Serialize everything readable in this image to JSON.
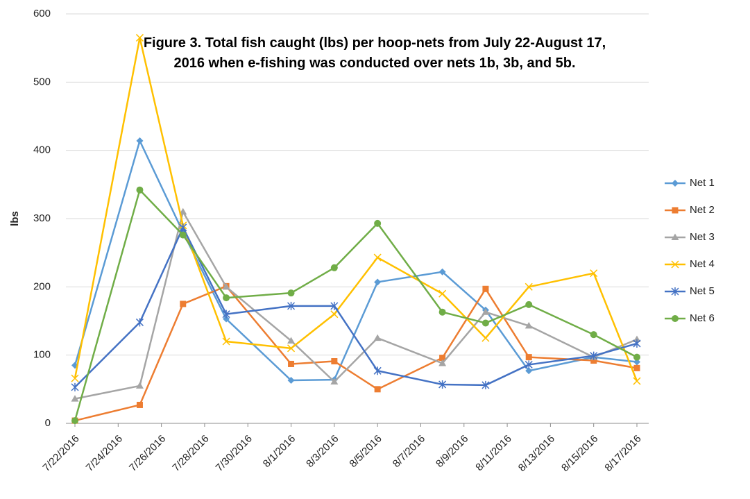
{
  "chart_data": {
    "type": "line",
    "title": [
      "Figure 3. Total fish caught (lbs) per hoop-nets from July 22-August 17,",
      "2016 when e-fishing was conducted over nets 1b, 3b, and 5b."
    ],
    "y_label": "lbs",
    "x": [
      "7/22/2016",
      "7/25/2016",
      "7/27/2016",
      "7/29/2016",
      "8/1/2016",
      "8/3/2016",
      "8/5/2016",
      "8/8/2016",
      "8/10/2016",
      "8/12/2016",
      "8/15/2016",
      "8/17/2016"
    ],
    "xlim": [
      "7/22/2016",
      "8/17/2016"
    ],
    "xticks": [
      "7/22/2016",
      "7/24/2016",
      "7/26/2016",
      "7/28/2016",
      "7/30/2016",
      "8/1/2016",
      "8/3/2016",
      "8/5/2016",
      "8/7/2016",
      "8/9/2016",
      "8/11/2016",
      "8/13/2016",
      "8/15/2016",
      "8/17/2016"
    ],
    "ylim": [
      0,
      600
    ],
    "yticks": [
      0,
      100,
      200,
      300,
      400,
      500,
      600
    ],
    "grid": true,
    "legend": "right",
    "series": [
      {
        "name": "Net 1",
        "color": "#5b9bd5",
        "marker": "diamond",
        "values": [
          85,
          414,
          280,
          153,
          63,
          64,
          207,
          222,
          166,
          77,
          97,
          90
        ]
      },
      {
        "name": "Net 2",
        "color": "#ed7d31",
        "marker": "square",
        "values": [
          4,
          27,
          175,
          201,
          87,
          91,
          50,
          96,
          197,
          97,
          92,
          81
        ]
      },
      {
        "name": "Net 3",
        "color": "#a5a5a5",
        "marker": "triangle",
        "values": [
          36,
          55,
          310,
          200,
          121,
          61,
          125,
          88,
          163,
          143,
          97,
          123
        ]
      },
      {
        "name": "Net 4",
        "color": "#ffc000",
        "marker": "x",
        "values": [
          66,
          565,
          290,
          120,
          110,
          160,
          243,
          190,
          125,
          200,
          220,
          62
        ]
      },
      {
        "name": "Net 5",
        "color": "#4472c4",
        "marker": "star",
        "values": [
          53,
          148,
          287,
          160,
          172,
          172,
          77,
          57,
          56,
          86,
          99,
          117
        ]
      },
      {
        "name": "Net 6",
        "color": "#70ad47",
        "marker": "circle",
        "values": [
          4,
          342,
          276,
          184,
          191,
          228,
          293,
          163,
          147,
          174,
          130,
          97
        ]
      }
    ]
  }
}
